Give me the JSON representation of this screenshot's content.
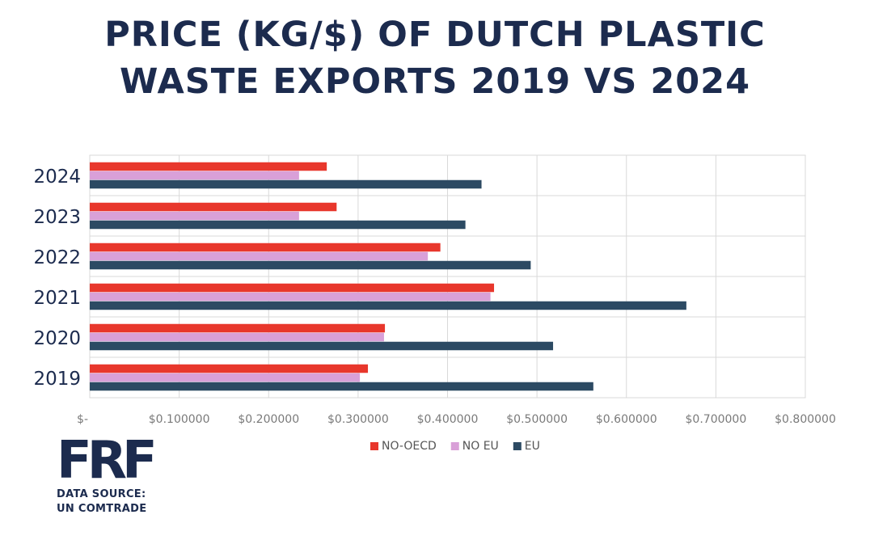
{
  "chart_data": {
    "type": "bar",
    "orientation": "horizontal",
    "title_lines": [
      "PRICE (KG/$) OF DUTCH PLASTIC",
      "WASTE EXPORTS 2019 VS 2024"
    ],
    "categories": [
      "2024",
      "2023",
      "2022",
      "2021",
      "2020",
      "2019"
    ],
    "series": [
      {
        "name": "NO-OECD",
        "color": "#e8372c",
        "values": [
          0.265,
          0.276,
          0.392,
          0.452,
          0.33,
          0.311
        ]
      },
      {
        "name": "NO EU",
        "color": "#d9a0d8",
        "values": [
          0.234,
          0.234,
          0.378,
          0.448,
          0.329,
          0.302
        ]
      },
      {
        "name": "EU",
        "color": "#2c4a63",
        "values": [
          0.438,
          0.42,
          0.493,
          0.667,
          0.518,
          0.563
        ]
      }
    ],
    "x_ticks": [
      "$-",
      "$0.100000",
      "$0.200000",
      "$0.300000",
      "$0.400000",
      "$0.500000",
      "$0.600000",
      "$0.700000",
      "$0.800000"
    ],
    "xlim": [
      0,
      0.8
    ],
    "grid": true,
    "legend_position": "bottom-center"
  },
  "brand": {
    "logo_text": "FRF",
    "source_line1": "DATA SOURCE:",
    "source_line2": "UN COMTRADE"
  }
}
